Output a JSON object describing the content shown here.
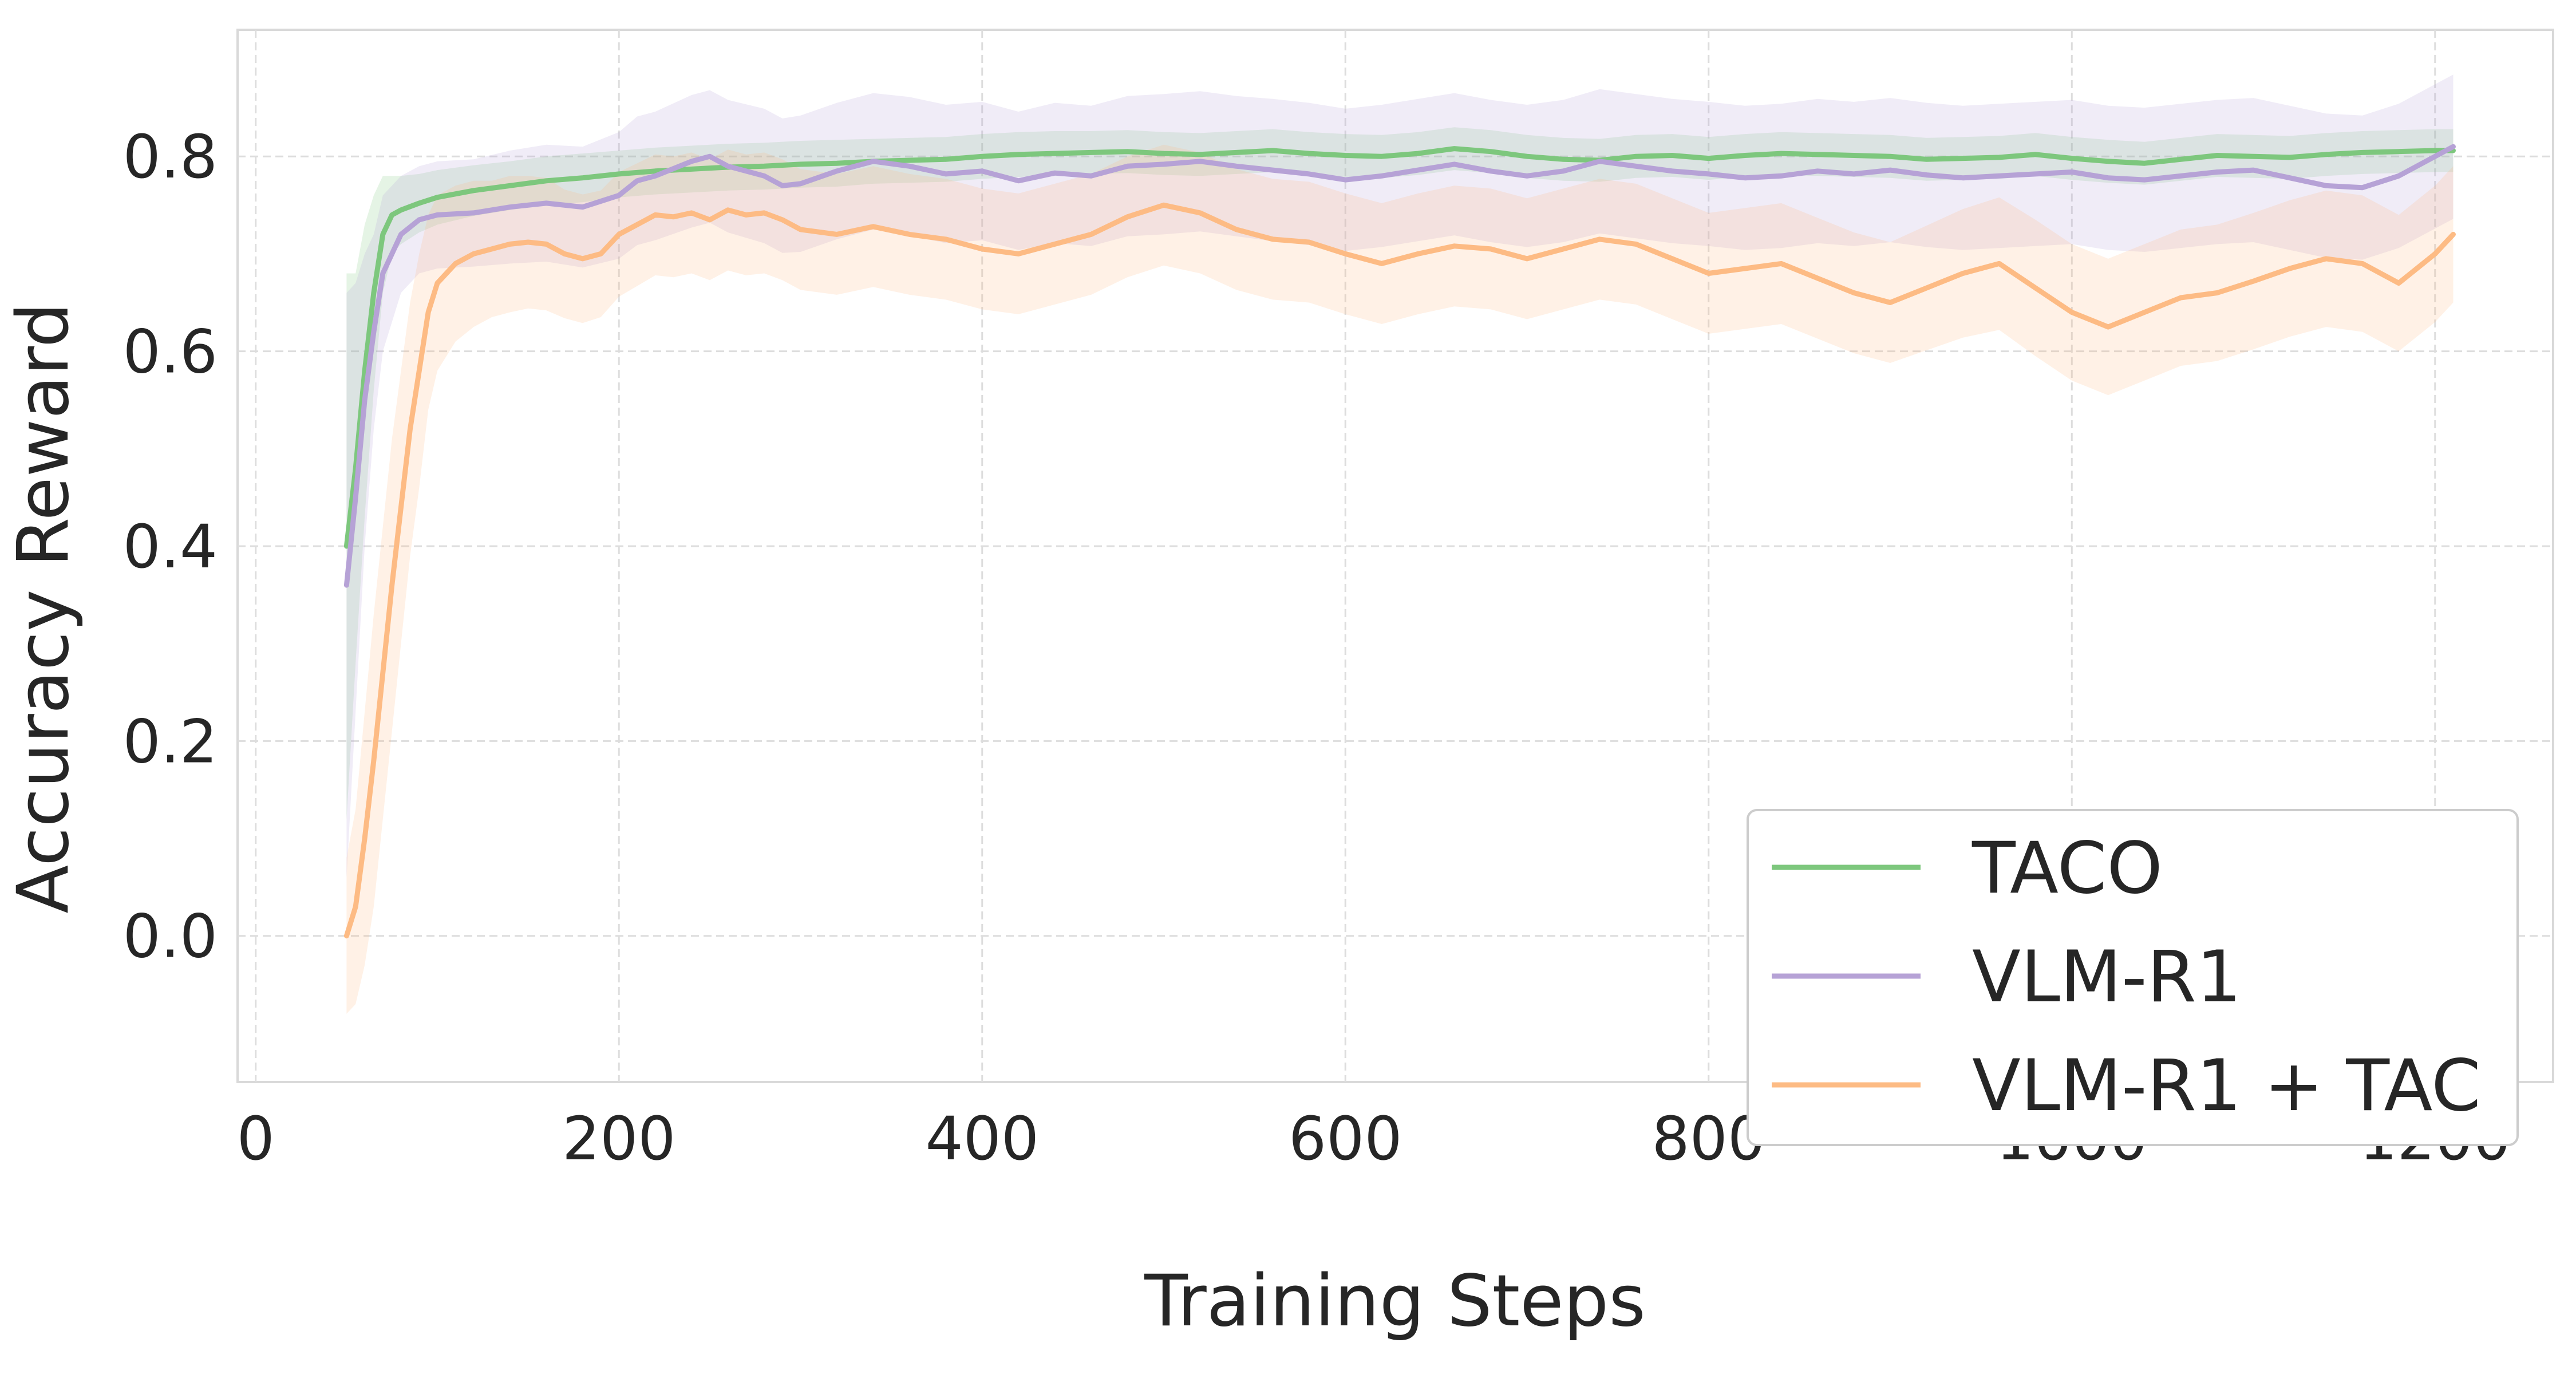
{
  "chart_data": {
    "type": "line",
    "title": "",
    "xlabel": "Training Steps",
    "ylabel": "Accuracy Reward",
    "xlim": [
      -10,
      1265
    ],
    "ylim": [
      -0.15,
      0.93
    ],
    "xticks": [
      0,
      200,
      400,
      600,
      800,
      1000,
      1200
    ],
    "yticks": [
      0.0,
      0.2,
      0.4,
      0.6,
      0.8
    ],
    "xtick_labels": [
      "0",
      "200",
      "400",
      "600",
      "800",
      "1000",
      "1200"
    ],
    "ytick_labels": [
      "0.0",
      "0.2",
      "0.4",
      "0.6",
      "0.8"
    ],
    "grid": true,
    "legend_position": "lower-right",
    "series": [
      {
        "name": "TACO",
        "color": "#7dc77d",
        "x": [
          50,
          55,
          60,
          65,
          70,
          75,
          80,
          90,
          100,
          120,
          140,
          160,
          180,
          200,
          220,
          240,
          260,
          280,
          300,
          320,
          340,
          360,
          380,
          400,
          420,
          440,
          460,
          480,
          500,
          520,
          540,
          560,
          580,
          600,
          620,
          640,
          660,
          680,
          700,
          720,
          740,
          760,
          780,
          800,
          820,
          840,
          860,
          880,
          900,
          920,
          940,
          960,
          980,
          1000,
          1020,
          1040,
          1060,
          1080,
          1100,
          1120,
          1140,
          1160,
          1180,
          1200,
          1210
        ],
        "y": [
          0.4,
          0.48,
          0.58,
          0.66,
          0.72,
          0.74,
          0.745,
          0.752,
          0.758,
          0.765,
          0.77,
          0.775,
          0.778,
          0.782,
          0.785,
          0.787,
          0.789,
          0.79,
          0.792,
          0.793,
          0.795,
          0.796,
          0.797,
          0.8,
          0.802,
          0.803,
          0.804,
          0.805,
          0.803,
          0.802,
          0.804,
          0.806,
          0.803,
          0.801,
          0.8,
          0.803,
          0.808,
          0.805,
          0.8,
          0.797,
          0.796,
          0.8,
          0.801,
          0.798,
          0.801,
          0.803,
          0.802,
          0.801,
          0.8,
          0.797,
          0.798,
          0.799,
          0.802,
          0.798,
          0.795,
          0.793,
          0.797,
          0.801,
          0.8,
          0.799,
          0.802,
          0.804,
          0.805,
          0.806,
          0.806
        ],
        "band": [
          0.28,
          0.2,
          0.15,
          0.1,
          0.06,
          0.04,
          0.035,
          0.03,
          0.028,
          0.026,
          0.025,
          0.025,
          0.025,
          0.024,
          0.024,
          0.024,
          0.024,
          0.024,
          0.024,
          0.024,
          0.023,
          0.023,
          0.023,
          0.023,
          0.023,
          0.023,
          0.022,
          0.022,
          0.022,
          0.022,
          0.022,
          0.022,
          0.022,
          0.022,
          0.022,
          0.022,
          0.022,
          0.022,
          0.022,
          0.022,
          0.022,
          0.022,
          0.022,
          0.022,
          0.022,
          0.022,
          0.022,
          0.022,
          0.022,
          0.022,
          0.022,
          0.022,
          0.022,
          0.022,
          0.022,
          0.022,
          0.022,
          0.022,
          0.022,
          0.022,
          0.022,
          0.022,
          0.022,
          0.022,
          0.022
        ]
      },
      {
        "name": "VLM-R1",
        "color": "#b6a2d6",
        "x": [
          50,
          55,
          60,
          65,
          70,
          75,
          80,
          90,
          100,
          120,
          140,
          160,
          180,
          200,
          210,
          220,
          240,
          250,
          260,
          280,
          290,
          300,
          320,
          340,
          360,
          380,
          400,
          420,
          440,
          460,
          480,
          500,
          520,
          540,
          560,
          580,
          600,
          620,
          640,
          660,
          680,
          700,
          720,
          740,
          760,
          780,
          800,
          820,
          840,
          860,
          880,
          900,
          920,
          940,
          960,
          980,
          1000,
          1020,
          1040,
          1060,
          1080,
          1100,
          1120,
          1140,
          1160,
          1180,
          1200,
          1210
        ],
        "y": [
          0.36,
          0.45,
          0.55,
          0.62,
          0.68,
          0.7,
          0.72,
          0.735,
          0.74,
          0.742,
          0.748,
          0.752,
          0.748,
          0.76,
          0.775,
          0.78,
          0.795,
          0.8,
          0.79,
          0.78,
          0.77,
          0.772,
          0.785,
          0.795,
          0.79,
          0.782,
          0.785,
          0.775,
          0.783,
          0.78,
          0.79,
          0.792,
          0.795,
          0.79,
          0.786,
          0.782,
          0.776,
          0.78,
          0.786,
          0.792,
          0.785,
          0.78,
          0.785,
          0.795,
          0.79,
          0.785,
          0.782,
          0.778,
          0.78,
          0.785,
          0.782,
          0.786,
          0.781,
          0.778,
          0.78,
          0.782,
          0.784,
          0.778,
          0.776,
          0.78,
          0.784,
          0.786,
          0.778,
          0.77,
          0.768,
          0.78,
          0.8,
          0.81
        ],
        "band": [
          0.3,
          0.22,
          0.15,
          0.1,
          0.08,
          0.07,
          0.06,
          0.055,
          0.055,
          0.055,
          0.058,
          0.06,
          0.062,
          0.065,
          0.066,
          0.066,
          0.068,
          0.068,
          0.068,
          0.069,
          0.069,
          0.07,
          0.07,
          0.07,
          0.071,
          0.071,
          0.071,
          0.071,
          0.072,
          0.072,
          0.072,
          0.072,
          0.072,
          0.072,
          0.073,
          0.073,
          0.073,
          0.073,
          0.073,
          0.073,
          0.073,
          0.073,
          0.073,
          0.074,
          0.074,
          0.074,
          0.074,
          0.074,
          0.074,
          0.074,
          0.074,
          0.074,
          0.074,
          0.074,
          0.074,
          0.074,
          0.074,
          0.074,
          0.074,
          0.074,
          0.074,
          0.074,
          0.074,
          0.074,
          0.074,
          0.074,
          0.074,
          0.074
        ]
      },
      {
        "name": "VLM-R1 + TAC",
        "color": "#fdbb84",
        "x": [
          50,
          55,
          60,
          65,
          70,
          75,
          80,
          85,
          90,
          95,
          100,
          105,
          110,
          120,
          130,
          140,
          150,
          160,
          170,
          180,
          190,
          200,
          210,
          220,
          230,
          240,
          250,
          260,
          270,
          280,
          290,
          300,
          320,
          340,
          360,
          380,
          400,
          420,
          440,
          460,
          480,
          500,
          520,
          540,
          560,
          580,
          600,
          620,
          640,
          660,
          680,
          700,
          720,
          740,
          760,
          780,
          800,
          820,
          840,
          860,
          880,
          900,
          920,
          940,
          960,
          980,
          1000,
          1020,
          1040,
          1060,
          1080,
          1100,
          1120,
          1140,
          1160,
          1180,
          1200,
          1210
        ],
        "y": [
          0.0,
          0.03,
          0.1,
          0.18,
          0.27,
          0.36,
          0.44,
          0.52,
          0.58,
          0.64,
          0.67,
          0.68,
          0.69,
          0.7,
          0.705,
          0.71,
          0.712,
          0.71,
          0.7,
          0.695,
          0.7,
          0.72,
          0.73,
          0.74,
          0.738,
          0.742,
          0.735,
          0.745,
          0.74,
          0.742,
          0.735,
          0.725,
          0.72,
          0.728,
          0.72,
          0.715,
          0.705,
          0.7,
          0.71,
          0.72,
          0.738,
          0.75,
          0.742,
          0.725,
          0.715,
          0.712,
          0.7,
          0.69,
          0.7,
          0.708,
          0.705,
          0.695,
          0.705,
          0.715,
          0.71,
          0.695,
          0.68,
          0.685,
          0.69,
          0.675,
          0.66,
          0.65,
          0.665,
          0.68,
          0.69,
          0.665,
          0.64,
          0.625,
          0.64,
          0.655,
          0.66,
          0.672,
          0.685,
          0.695,
          0.69,
          0.67,
          0.7,
          0.72
        ],
        "band": [
          0.08,
          0.1,
          0.13,
          0.15,
          0.15,
          0.15,
          0.14,
          0.13,
          0.12,
          0.1,
          0.09,
          0.085,
          0.08,
          0.075,
          0.07,
          0.07,
          0.068,
          0.068,
          0.066,
          0.066,
          0.065,
          0.064,
          0.063,
          0.062,
          0.062,
          0.062,
          0.062,
          0.062,
          0.062,
          0.062,
          0.062,
          0.062,
          0.062,
          0.062,
          0.062,
          0.062,
          0.062,
          0.062,
          0.062,
          0.062,
          0.062,
          0.062,
          0.062,
          0.062,
          0.062,
          0.062,
          0.062,
          0.062,
          0.062,
          0.062,
          0.062,
          0.062,
          0.062,
          0.062,
          0.062,
          0.062,
          0.062,
          0.062,
          0.062,
          0.062,
          0.062,
          0.062,
          0.064,
          0.066,
          0.068,
          0.07,
          0.07,
          0.07,
          0.07,
          0.07,
          0.07,
          0.07,
          0.07,
          0.07,
          0.07,
          0.07,
          0.07,
          0.07
        ]
      }
    ]
  }
}
